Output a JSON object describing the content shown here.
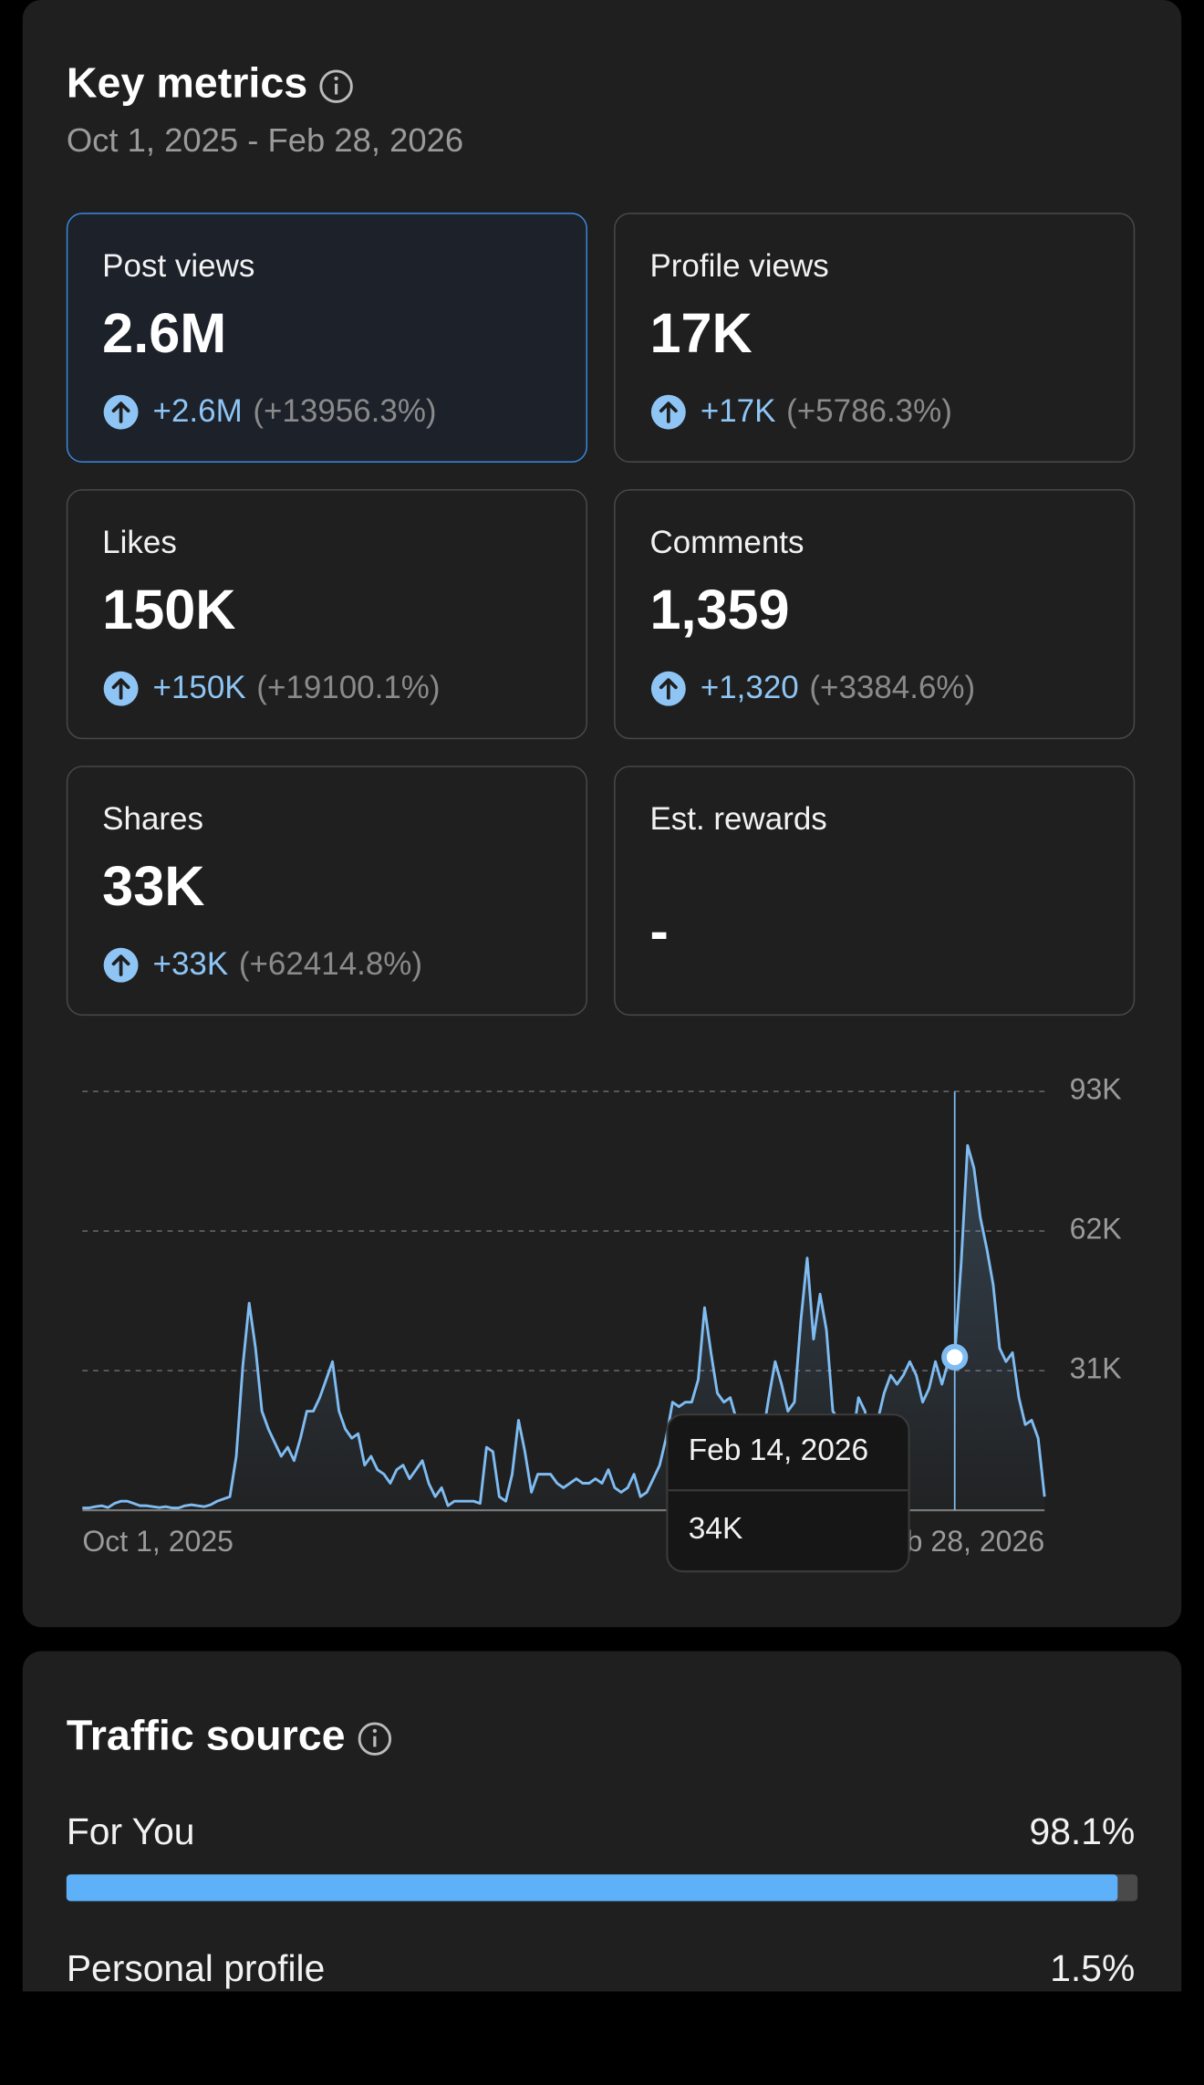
{
  "header": {
    "title": "Key metrics",
    "date_range": "Oct 1, 2025 - Feb 28, 2026"
  },
  "metrics": [
    {
      "label": "Post views",
      "value": "2.6M",
      "change": "+2.6M",
      "change_pct": "(+13956.3%)"
    },
    {
      "label": "Profile views",
      "value": "17K",
      "change": "+17K",
      "change_pct": "(+5786.3%)"
    },
    {
      "label": "Likes",
      "value": "150K",
      "change": "+150K",
      "change_pct": "(+19100.1%)"
    },
    {
      "label": "Comments",
      "value": "1,359",
      "change": "+1,320",
      "change_pct": "(+3384.6%)"
    },
    {
      "label": "Shares",
      "value": "33K",
      "change": "+33K",
      "change_pct": "(+62414.8%)"
    },
    {
      "label": "Est. rewards",
      "value": "-"
    }
  ],
  "chart_data": {
    "type": "line",
    "categories": [
      "Oct 1, 2025",
      null,
      null,
      null,
      null,
      null,
      null,
      null,
      null,
      null,
      null,
      null,
      null,
      null,
      null,
      null,
      null,
      null,
      null,
      null,
      null,
      null,
      null,
      null,
      null,
      null,
      null,
      null,
      null,
      null,
      null,
      null,
      null,
      null,
      null,
      null,
      null,
      null,
      null,
      null,
      null,
      null,
      null,
      null,
      null,
      null,
      null,
      null,
      null,
      null,
      null,
      null,
      null,
      null,
      null,
      null,
      null,
      null,
      null,
      null,
      null,
      null,
      null,
      null,
      null,
      null,
      null,
      null,
      null,
      null,
      null,
      null,
      null,
      null,
      null,
      null,
      null,
      null,
      null,
      null,
      null,
      null,
      null,
      null,
      null,
      null,
      null,
      null,
      null,
      null,
      null,
      null,
      null,
      null,
      null,
      null,
      null,
      null,
      null,
      null,
      null,
      null,
      null,
      null,
      null,
      null,
      null,
      null,
      null,
      null,
      null,
      null,
      null,
      null,
      null,
      null,
      null,
      null,
      null,
      null,
      null,
      null,
      null,
      null,
      null,
      null,
      null,
      null,
      null,
      null,
      null,
      null,
      null,
      null,
      null,
      null,
      "Feb 14, 2026",
      null,
      null,
      null,
      null,
      null,
      null,
      null,
      null,
      null,
      null,
      null,
      null,
      null,
      "Feb 28, 2026"
    ],
    "series": [
      {
        "color": "#7fbcf2",
        "values": [
          500,
          500,
          800,
          1000,
          600,
          1500,
          2000,
          2000,
          1500,
          1000,
          1000,
          800,
          600,
          800,
          500,
          500,
          1000,
          1200,
          1000,
          800,
          1200,
          2000,
          2500,
          3000,
          12000,
          32000,
          46000,
          36000,
          22000,
          18000,
          15000,
          12000,
          14000,
          11000,
          16000,
          22000,
          22000,
          25000,
          29000,
          33000,
          22000,
          18000,
          16000,
          17000,
          10000,
          12000,
          9000,
          8000,
          6000,
          9000,
          10000,
          7000,
          9000,
          11000,
          6000,
          3000,
          5000,
          1000,
          2000,
          2000,
          2000,
          2000,
          1500,
          14000,
          13000,
          3000,
          2000,
          8000,
          20000,
          13000,
          4000,
          8000,
          8000,
          8000,
          6000,
          5000,
          6000,
          7000,
          6000,
          6000,
          7000,
          6000,
          9000,
          5000,
          4000,
          5000,
          8000,
          3000,
          4000,
          7000,
          10000,
          16000,
          24000,
          23000,
          24000,
          24000,
          29000,
          45000,
          35000,
          26000,
          24000,
          25000,
          20000,
          12000,
          10000,
          14000,
          16000,
          25000,
          33000,
          28000,
          22000,
          24000,
          42000,
          56000,
          38000,
          48000,
          40000,
          22000,
          20000,
          12000,
          15000,
          25000,
          22000,
          14000,
          20000,
          26000,
          30000,
          28000,
          30000,
          33000,
          30000,
          24000,
          27000,
          33000,
          28000,
          33000,
          34000,
          55000,
          81000,
          76000,
          65000,
          58000,
          50000,
          36000,
          33000,
          35000,
          25000,
          19000,
          20000,
          16000,
          3000
        ],
        "value_labels": [
          null,
          null,
          null,
          null,
          null,
          null,
          null,
          null,
          null,
          null,
          null,
          null,
          null,
          null,
          null,
          null,
          null,
          null,
          null,
          null,
          null,
          null,
          null,
          null,
          null,
          null,
          null,
          null,
          null,
          null,
          null,
          null,
          null,
          null,
          null,
          null,
          null,
          null,
          null,
          null,
          null,
          null,
          null,
          null,
          null,
          null,
          null,
          null,
          null,
          null,
          null,
          null,
          null,
          null,
          null,
          null,
          null,
          null,
          null,
          null,
          null,
          null,
          null,
          null,
          null,
          null,
          null,
          null,
          null,
          null,
          null,
          null,
          null,
          null,
          null,
          null,
          null,
          null,
          null,
          null,
          null,
          null,
          null,
          null,
          null,
          null,
          null,
          null,
          null,
          null,
          null,
          null,
          null,
          null,
          null,
          null,
          null,
          null,
          null,
          null,
          null,
          null,
          null,
          null,
          null,
          null,
          null,
          null,
          null,
          null,
          null,
          null,
          null,
          null,
          null,
          null,
          null,
          null,
          null,
          null,
          null,
          null,
          null,
          null,
          null,
          null,
          null,
          null,
          null,
          null,
          null,
          null,
          null,
          null,
          null,
          null,
          "34K",
          null,
          null,
          null,
          null,
          null,
          null,
          null,
          null,
          null,
          null,
          null,
          null,
          null,
          null
        ]
      }
    ],
    "ylim": [
      0,
      93000
    ],
    "yticks": [
      {
        "value": 31000,
        "label": "31K"
      },
      {
        "value": 62000,
        "label": "62K"
      },
      {
        "value": 93000,
        "label": "93K"
      }
    ],
    "grid": true
  },
  "traffic": {
    "title": "Traffic source",
    "items": [
      {
        "label": "For You",
        "share": 98.1,
        "share_label": "98.1%"
      },
      {
        "label": "Personal profile",
        "share": 1.5,
        "share_label": "1.5%"
      }
    ]
  }
}
